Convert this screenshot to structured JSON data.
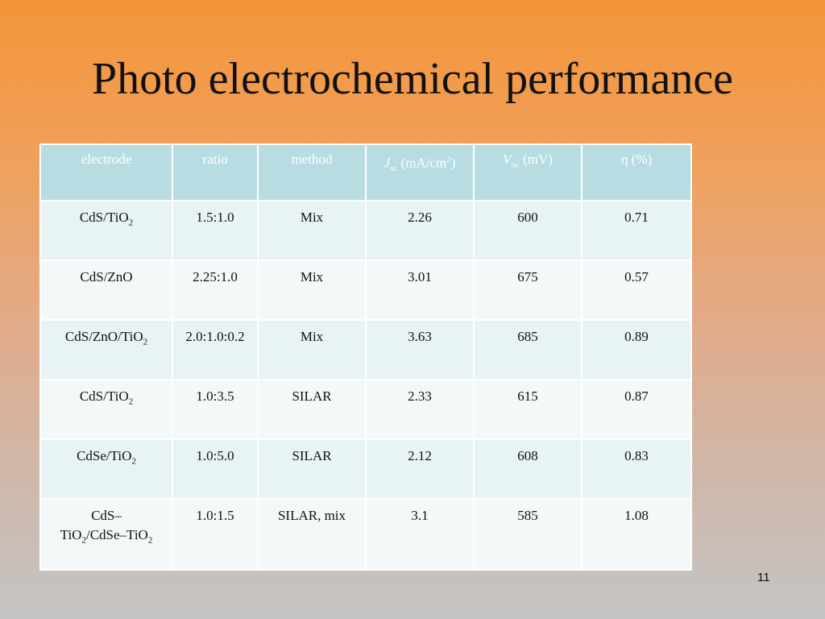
{
  "title": "Photo electrochemical performance",
  "slide_number": "11",
  "table": {
    "headers": {
      "electrode": "electrode",
      "ratio": "ratio",
      "method": "method",
      "jsc_symbol": "J",
      "jsc_sub": "sc",
      "jsc_unit_pre": " (mA/cm",
      "jsc_unit_sup": "2",
      "jsc_unit_post": ")",
      "voc_symbol": "V",
      "voc_sub": "oc",
      "voc_unit": " (mV)",
      "eta": "η (%)"
    },
    "rows": [
      {
        "electrode_base": "CdS/TiO",
        "electrode_sub": "2",
        "ratio": "1.5:1.0",
        "method": "Mix",
        "jsc": "2.26",
        "voc": "600",
        "eta": "0.71"
      },
      {
        "electrode_base": "CdS/ZnO",
        "electrode_sub": "",
        "ratio": "2.25:1.0",
        "method": "Mix",
        "jsc": "3.01",
        "voc": "675",
        "eta": "0.57"
      },
      {
        "electrode_base": "CdS/ZnO/TiO",
        "electrode_sub": "2",
        "ratio": "2.0:1.0:0.2",
        "method": "Mix",
        "jsc": "3.63",
        "voc": "685",
        "eta": "0.89"
      },
      {
        "electrode_base": "CdS/TiO",
        "electrode_sub": "2",
        "ratio": "1.0:3.5",
        "method": "SILAR",
        "jsc": "2.33",
        "voc": "615",
        "eta": "0.87"
      },
      {
        "electrode_base": "CdSe/TiO",
        "electrode_sub": "2",
        "ratio": "1.0:5.0",
        "method": "SILAR",
        "jsc": "2.12",
        "voc": "608",
        "eta": "0.83"
      },
      {
        "electrode_line1": "CdS–",
        "electrode_l2_a": "TiO",
        "electrode_l2_sub1": "2",
        "electrode_l2_b": "/CdSe–TiO",
        "electrode_l2_sub2": "2",
        "ratio": "1.0:1.5",
        "method": "SILAR, mix",
        "jsc": "3.1",
        "voc": "585",
        "eta": "1.08"
      }
    ]
  }
}
